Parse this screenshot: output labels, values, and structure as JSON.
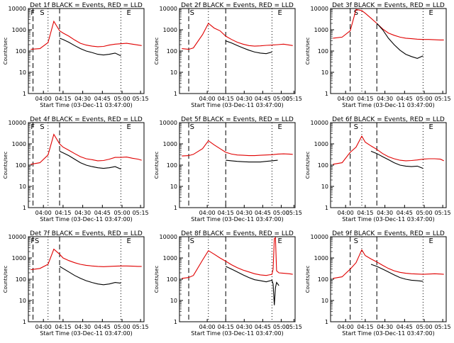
{
  "figure": {
    "xlabel": "Start Time (03-Dec-11 03:47:00)",
    "ylabel": "Counts/sec"
  },
  "chart_data": [
    {
      "type": "line",
      "title": "Det 1f BLACK = Events, RED = LLD",
      "xlabel": "Start Time (03-Dec-11 03:47:00)",
      "ylabel": "Counts/sec",
      "y_scale": "log",
      "ylim": [
        1,
        10000
      ],
      "yticks": [
        "1",
        "10",
        "100",
        "1000",
        "10000"
      ],
      "xticks": [
        "04:00",
        "04:15",
        "04:30",
        "04:45",
        "05:00",
        "05:15"
      ],
      "markers": [
        "F",
        "S",
        "E"
      ],
      "series": [
        {
          "name": "Events",
          "color": "#000000",
          "x": [
            0.27,
            0.3,
            0.35,
            0.4,
            0.45,
            0.5,
            0.55,
            0.6,
            0.65,
            0.7,
            0.75,
            0.8
          ],
          "y": [
            400,
            350,
            260,
            180,
            130,
            100,
            85,
            70,
            65,
            70,
            80,
            60
          ]
        },
        {
          "name": "LLD",
          "color": "#e00000",
          "x": [
            0.02,
            0.1,
            0.17,
            0.22,
            0.27,
            0.3,
            0.35,
            0.4,
            0.45,
            0.5,
            0.55,
            0.6,
            0.65,
            0.7,
            0.75,
            0.8,
            0.85,
            0.9,
            0.95,
            0.98
          ],
          "y": [
            120,
            130,
            250,
            2500,
            900,
            700,
            500,
            330,
            230,
            190,
            170,
            160,
            165,
            190,
            210,
            220,
            230,
            210,
            190,
            180
          ]
        }
      ]
    },
    {
      "type": "line",
      "title": "Det 2f BLACK = Events, RED = LLD",
      "xlabel": "Start Time (03-Dec-11 03:47:00)",
      "ylabel": "Counts/sec",
      "y_scale": "log",
      "ylim": [
        1,
        10000
      ],
      "yticks": [
        "1",
        "10",
        "100",
        "1000",
        "10000"
      ],
      "xticks": [
        "04:00",
        "04:15",
        "04:30",
        "04:45",
        "05:00",
        "05:15"
      ],
      "markers": [
        "S",
        "E"
      ],
      "series": [
        {
          "name": "Events",
          "color": "#000000",
          "x": [
            0.4,
            0.45,
            0.5,
            0.55,
            0.6,
            0.65,
            0.7,
            0.75,
            0.8
          ],
          "y": [
            300,
            240,
            180,
            140,
            110,
            90,
            80,
            75,
            90
          ]
        },
        {
          "name": "LLD",
          "color": "#e00000",
          "x": [
            0.02,
            0.08,
            0.12,
            0.2,
            0.25,
            0.3,
            0.35,
            0.4,
            0.45,
            0.5,
            0.55,
            0.6,
            0.65,
            0.7,
            0.75,
            0.8,
            0.85,
            0.9,
            0.95,
            0.98
          ],
          "y": [
            130,
            120,
            140,
            600,
            2000,
            1200,
            900,
            500,
            350,
            260,
            210,
            180,
            170,
            175,
            185,
            190,
            200,
            210,
            190,
            180
          ]
        }
      ]
    },
    {
      "type": "line",
      "title": "Det 3f BLACK = Events, RED = LLD",
      "xlabel": "Start Time (03-Dec-11 03:47:00)",
      "ylabel": "Counts/sec",
      "y_scale": "log",
      "ylim": [
        1,
        10000
      ],
      "yticks": [
        "1",
        "10",
        "100",
        "1000",
        "10000"
      ],
      "xticks": [
        "04:00",
        "04:15",
        "04:30",
        "04:45",
        "05:00",
        "05:15"
      ],
      "markers": [
        "S",
        "E"
      ],
      "series": [
        {
          "name": "Events",
          "color": "#000000",
          "x": [
            0.4,
            0.45,
            0.5,
            0.55,
            0.6,
            0.65,
            0.7,
            0.75,
            0.8
          ],
          "y": [
            2000,
            1000,
            400,
            200,
            110,
            70,
            55,
            45,
            60
          ]
        },
        {
          "name": "LLD",
          "color": "#e00000",
          "x": [
            0.02,
            0.1,
            0.17,
            0.22,
            0.27,
            0.3,
            0.35,
            0.4,
            0.45,
            0.5,
            0.55,
            0.6,
            0.65,
            0.7,
            0.75,
            0.8,
            0.85,
            0.9,
            0.95,
            0.98
          ],
          "y": [
            400,
            450,
            900,
            9000,
            8000,
            6000,
            3500,
            2000,
            1100,
            700,
            550,
            450,
            400,
            380,
            360,
            350,
            350,
            340,
            330,
            330
          ]
        }
      ]
    },
    {
      "type": "line",
      "title": "Det 4f BLACK = Events, RED = LLD",
      "xlabel": "Start Time (03-Dec-11 03:47:00)",
      "ylabel": "Counts/sec",
      "y_scale": "log",
      "ylim": [
        1,
        10000
      ],
      "yticks": [
        "1",
        "10",
        "100",
        "1000",
        "10000"
      ],
      "xticks": [
        "04:00",
        "04:15",
        "04:30",
        "04:45",
        "05:00",
        "05:15"
      ],
      "markers": [
        "F",
        "S",
        "E"
      ],
      "series": [
        {
          "name": "Events",
          "color": "#000000",
          "x": [
            0.27,
            0.3,
            0.35,
            0.4,
            0.45,
            0.5,
            0.55,
            0.6,
            0.65,
            0.7,
            0.75,
            0.8
          ],
          "y": [
            450,
            380,
            280,
            190,
            130,
            100,
            85,
            75,
            70,
            75,
            85,
            65
          ]
        },
        {
          "name": "LLD",
          "color": "#e00000",
          "x": [
            0.02,
            0.1,
            0.17,
            0.22,
            0.27,
            0.3,
            0.35,
            0.4,
            0.45,
            0.5,
            0.55,
            0.6,
            0.65,
            0.7,
            0.75,
            0.8,
            0.85,
            0.9,
            0.95,
            0.98
          ],
          "y": [
            110,
            130,
            300,
            2800,
            1000,
            700,
            500,
            350,
            250,
            200,
            180,
            160,
            165,
            190,
            230,
            230,
            240,
            210,
            190,
            170
          ]
        }
      ]
    },
    {
      "type": "line",
      "title": "Det 5f BLACK = Events, RED = LLD",
      "xlabel": "Start Time (03-Dec-11 03:47:00)",
      "ylabel": "Counts/sec",
      "y_scale": "log",
      "ylim": [
        1,
        10000
      ],
      "yticks": [
        "1",
        "10",
        "100",
        "1000",
        "10000"
      ],
      "xticks": [
        "04:00",
        "04:15",
        "04:30",
        "04:45",
        "05:00",
        "05:15"
      ],
      "markers": [
        "S",
        "E"
      ],
      "series": [
        {
          "name": "Events",
          "color": "#000000",
          "x": [
            0.4,
            0.45,
            0.5,
            0.55,
            0.6,
            0.65,
            0.7,
            0.75,
            0.8,
            0.85
          ],
          "y": [
            170,
            160,
            150,
            145,
            140,
            140,
            140,
            150,
            160,
            170
          ]
        },
        {
          "name": "LLD",
          "color": "#e00000",
          "x": [
            0.02,
            0.08,
            0.12,
            0.2,
            0.25,
            0.3,
            0.35,
            0.4,
            0.45,
            0.5,
            0.55,
            0.6,
            0.65,
            0.7,
            0.75,
            0.8,
            0.85,
            0.9,
            0.95,
            0.98
          ],
          "y": [
            270,
            280,
            320,
            600,
            1400,
            900,
            600,
            400,
            330,
            300,
            290,
            280,
            280,
            290,
            300,
            310,
            330,
            340,
            330,
            320
          ]
        }
      ]
    },
    {
      "type": "line",
      "title": "Det 6f BLACK = Events, RED = LLD",
      "xlabel": "Start Time (03-Dec-11 03:47:00)",
      "ylabel": "Counts/sec",
      "y_scale": "log",
      "ylim": [
        1,
        10000
      ],
      "yticks": [
        "1",
        "10",
        "100",
        "1000",
        "10000"
      ],
      "xticks": [
        "04:00",
        "04:15",
        "04:30",
        "04:45",
        "05:00",
        "05:15"
      ],
      "markers": [
        "S",
        "E"
      ],
      "series": [
        {
          "name": "Events",
          "color": "#000000",
          "x": [
            0.35,
            0.4,
            0.45,
            0.5,
            0.55,
            0.6,
            0.65,
            0.7,
            0.75,
            0.8
          ],
          "y": [
            450,
            350,
            250,
            180,
            130,
            100,
            90,
            85,
            90,
            70
          ]
        },
        {
          "name": "LLD",
          "color": "#e00000",
          "x": [
            0.02,
            0.1,
            0.17,
            0.22,
            0.27,
            0.3,
            0.35,
            0.4,
            0.45,
            0.5,
            0.55,
            0.6,
            0.65,
            0.7,
            0.75,
            0.8,
            0.85,
            0.9,
            0.95,
            0.98
          ],
          "y": [
            110,
            130,
            400,
            700,
            2300,
            1200,
            800,
            550,
            350,
            250,
            200,
            170,
            160,
            165,
            175,
            190,
            200,
            200,
            190,
            160
          ]
        }
      ]
    },
    {
      "type": "line",
      "title": "Det 7f BLACK = Events, RED = LLD",
      "xlabel": "Start Time (03-Dec-11 03:47:00)",
      "ylabel": "Counts/sec",
      "y_scale": "log",
      "ylim": [
        1,
        10000
      ],
      "yticks": [
        "1",
        "10",
        "100",
        "1000",
        "10000"
      ],
      "xticks": [
        "04:00",
        "04:15",
        "04:30",
        "04:45",
        "05:00",
        "05:15"
      ],
      "markers": [
        "FS",
        "E"
      ],
      "series": [
        {
          "name": "Events",
          "color": "#000000",
          "x": [
            0.27,
            0.3,
            0.35,
            0.4,
            0.45,
            0.5,
            0.55,
            0.6,
            0.65,
            0.7,
            0.75,
            0.8
          ],
          "y": [
            400,
            320,
            220,
            150,
            110,
            85,
            70,
            60,
            55,
            60,
            70,
            65
          ]
        },
        {
          "name": "LLD",
          "color": "#e00000",
          "x": [
            0.02,
            0.1,
            0.17,
            0.22,
            0.27,
            0.3,
            0.35,
            0.4,
            0.45,
            0.5,
            0.55,
            0.6,
            0.65,
            0.7,
            0.75,
            0.8,
            0.85,
            0.9,
            0.95,
            0.98
          ],
          "y": [
            280,
            320,
            500,
            2600,
            1500,
            1000,
            750,
            600,
            500,
            450,
            420,
            400,
            390,
            400,
            410,
            420,
            420,
            410,
            400,
            400
          ]
        }
      ]
    },
    {
      "type": "line",
      "title": "Det 8f BLACK = Events, RED = LLD",
      "xlabel": "Start Time (03-Dec-11 03:47:00)",
      "ylabel": "Counts/sec",
      "y_scale": "log",
      "ylim": [
        1,
        10000
      ],
      "yticks": [
        "1",
        "10",
        "100",
        "1000",
        "10000"
      ],
      "xticks": [
        "04:00",
        "04:15",
        "04:30",
        "04:45",
        "05:00",
        "05:15"
      ],
      "markers": [
        "S",
        "E"
      ],
      "series": [
        {
          "name": "Events",
          "color": "#000000",
          "x": [
            0.4,
            0.45,
            0.5,
            0.55,
            0.6,
            0.65,
            0.7,
            0.75,
            0.8,
            0.81,
            0.82,
            0.83,
            0.84,
            0.86
          ],
          "y": [
            400,
            300,
            220,
            160,
            120,
            95,
            85,
            75,
            90,
            60,
            6,
            40,
            70,
            50
          ]
        },
        {
          "name": "LLD",
          "color": "#e00000",
          "x": [
            0.02,
            0.08,
            0.12,
            0.2,
            0.25,
            0.3,
            0.35,
            0.4,
            0.45,
            0.5,
            0.55,
            0.6,
            0.65,
            0.7,
            0.75,
            0.8,
            0.81,
            0.82,
            0.83,
            0.84,
            0.86,
            0.9,
            0.95,
            0.98
          ],
          "y": [
            110,
            120,
            150,
            800,
            2200,
            1500,
            1000,
            700,
            480,
            350,
            270,
            220,
            180,
            160,
            150,
            170,
            300,
            8000,
            9000,
            250,
            200,
            190,
            180,
            170
          ]
        }
      ]
    },
    {
      "type": "line",
      "title": "Det 9f BLACK = Events, RED = LLD",
      "xlabel": "Start Time (03-Dec-11 03:47:00)",
      "ylabel": "Counts/sec",
      "y_scale": "log",
      "ylim": [
        1,
        10000
      ],
      "yticks": [
        "1",
        "10",
        "100",
        "1000",
        "10000"
      ],
      "xticks": [
        "04:00",
        "04:15",
        "04:30",
        "04:45",
        "05:00",
        "05:15"
      ],
      "markers": [
        "S",
        "E"
      ],
      "series": [
        {
          "name": "Events",
          "color": "#000000",
          "x": [
            0.35,
            0.4,
            0.45,
            0.5,
            0.55,
            0.6,
            0.65,
            0.7,
            0.75,
            0.8
          ],
          "y": [
            500,
            400,
            300,
            220,
            160,
            120,
            100,
            90,
            85,
            80
          ]
        },
        {
          "name": "LLD",
          "color": "#e00000",
          "x": [
            0.02,
            0.1,
            0.17,
            0.22,
            0.27,
            0.3,
            0.35,
            0.4,
            0.45,
            0.5,
            0.55,
            0.6,
            0.65,
            0.7,
            0.75,
            0.8,
            0.85,
            0.9,
            0.95,
            0.98
          ],
          "y": [
            110,
            130,
            300,
            600,
            2400,
            1300,
            900,
            650,
            450,
            320,
            250,
            210,
            190,
            180,
            175,
            170,
            175,
            180,
            175,
            170
          ]
        }
      ]
    }
  ]
}
